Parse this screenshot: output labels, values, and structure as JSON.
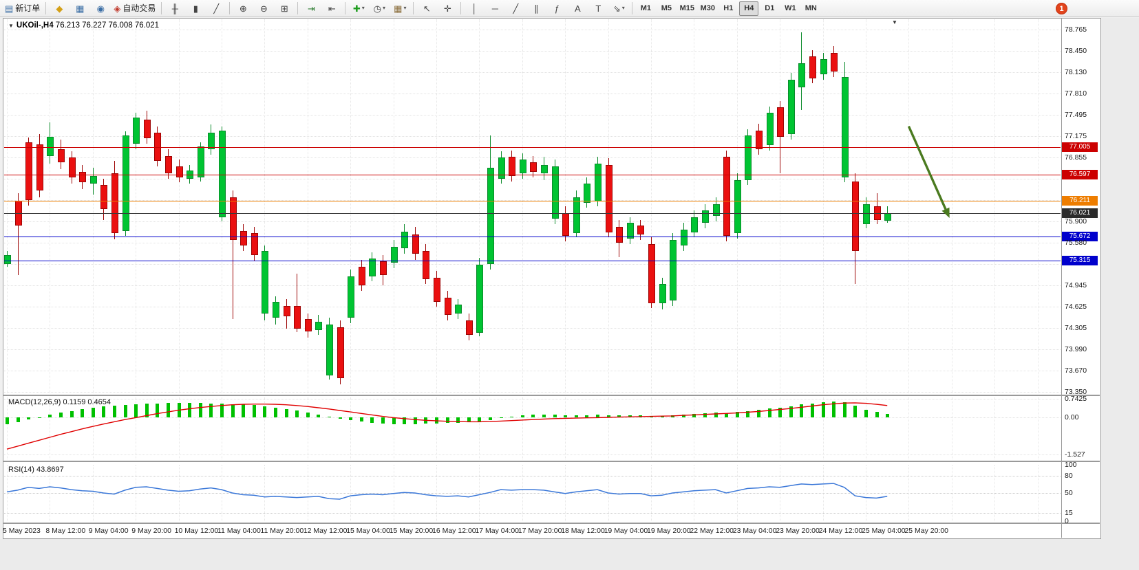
{
  "toolbar": {
    "buttons": [
      {
        "n": "new-order-button",
        "g": "▤",
        "c": "#3b6ea5",
        "label": "新订单"
      },
      {
        "sep": 1
      },
      {
        "n": "favorites-button",
        "g": "◆",
        "c": "#d4a017"
      },
      {
        "n": "market-watch-button",
        "g": "▦",
        "c": "#3b6ea5"
      },
      {
        "n": "navigator-button",
        "g": "◉",
        "c": "#3b6ea5"
      },
      {
        "n": "autotrading-button",
        "g": "◈",
        "c": "#c0392b",
        "label": "自动交易"
      },
      {
        "sep": 1
      },
      {
        "n": "bar-chart-button",
        "g": "╫",
        "c": "#444"
      },
      {
        "n": "candlestick-chart-button",
        "g": "▮",
        "c": "#444"
      },
      {
        "n": "line-chart-button",
        "g": "╱",
        "c": "#444"
      },
      {
        "sep": 1
      },
      {
        "n": "zoom-in-button",
        "g": "⊕",
        "c": "#444"
      },
      {
        "n": "zoom-out-button",
        "g": "⊖",
        "c": "#444"
      },
      {
        "n": "tile-windows-button",
        "g": "⊞",
        "c": "#444"
      },
      {
        "sep": 1
      },
      {
        "n": "auto-scroll-button",
        "g": "⇥",
        "c": "#2e7d32"
      },
      {
        "n": "chart-shift-button",
        "g": "⇤",
        "c": "#444"
      },
      {
        "sep": 1
      },
      {
        "n": "indicators-button",
        "g": "✚",
        "c": "#1f9d1f",
        "caret": 1
      },
      {
        "n": "periods-button",
        "g": "◷",
        "c": "#444",
        "caret": 1
      },
      {
        "n": "templates-button",
        "g": "▦",
        "c": "#8a6d3b",
        "caret": 1
      },
      {
        "sep": 1
      },
      {
        "n": "cursor-button",
        "g": "↖",
        "c": "#444"
      },
      {
        "n": "crosshair-button",
        "g": "✛",
        "c": "#444"
      },
      {
        "sep": 1
      },
      {
        "n": "vertical-line-button",
        "g": "│",
        "c": "#444"
      },
      {
        "n": "horizontal-line-button",
        "g": "─",
        "c": "#444"
      },
      {
        "n": "trendline-button",
        "g": "╱",
        "c": "#444"
      },
      {
        "n": "channel-button",
        "g": "∥",
        "c": "#444"
      },
      {
        "n": "fibonacci-button",
        "g": "ƒ",
        "c": "#444"
      },
      {
        "n": "text-button",
        "g": "A",
        "c": "#444"
      },
      {
        "n": "text-label-button",
        "g": "T",
        "c": "#444"
      },
      {
        "n": "arrows-tool-button",
        "g": "⇘",
        "c": "#444",
        "caret": 1
      },
      {
        "sep": 1
      }
    ],
    "timeframes": [
      "M1",
      "M5",
      "M15",
      "M30",
      "H1",
      "H4",
      "D1",
      "W1",
      "MN"
    ],
    "active_timeframe": "H4",
    "notification_count": "1"
  },
  "chart": {
    "symbol_period": "UKOil-,H4",
    "ohlc": "76.213 76.227 76.008 76.021"
  },
  "chart_data": {
    "type": "candlestick",
    "symbol": "UKOil",
    "timeframe": "H4",
    "current_ohlc": {
      "open": "76.213",
      "high": "76.227",
      "low": "76.008",
      "close": "76.021"
    },
    "price_axis_labels": [
      "78.765",
      "78.450",
      "78.130",
      "77.810",
      "77.495",
      "77.175",
      "76.855",
      "75.900",
      "75.580",
      "74.945",
      "74.625",
      "74.305",
      "73.990",
      "73.670",
      "73.350"
    ],
    "grid_prices": [
      78.765,
      78.45,
      78.13,
      77.81,
      77.495,
      77.175,
      76.855,
      76.535,
      76.215,
      75.9,
      75.58,
      75.26,
      74.945,
      74.625,
      74.305,
      73.99,
      73.67,
      73.35
    ],
    "levels": [
      {
        "price": 77.005,
        "label": "77.005",
        "color": "#cc0000"
      },
      {
        "price": 76.597,
        "label": "76.597",
        "color": "#cc0000"
      },
      {
        "price": 76.211,
        "label": "76.211",
        "color": "#ee7d00"
      },
      {
        "price": 76.021,
        "label": "76.021",
        "color": "#3a3a3a",
        "badge": "#2b2b2b",
        "current": true
      },
      {
        "price": 75.672,
        "label": "75.672",
        "color": "#0000cc"
      },
      {
        "price": 75.315,
        "label": "75.315",
        "color": "#0000cc"
      }
    ],
    "candle_colors": {
      "up": "#00c432",
      "up_border": "#0a8a2a",
      "down": "#ea1010",
      "down_border": "#9d0404"
    },
    "candles": [
      [
        75.46,
        75.4,
        75.28,
        75.22,
        "g"
      ],
      [
        76.32,
        76.21,
        75.86,
        75.1,
        "r"
      ],
      [
        77.15,
        77.08,
        76.24,
        76.14,
        "r"
      ],
      [
        77.2,
        77.05,
        76.38,
        76.26,
        "r"
      ],
      [
        77.38,
        77.16,
        76.9,
        76.76,
        "g"
      ],
      [
        77.12,
        76.98,
        76.8,
        76.68,
        "r"
      ],
      [
        76.95,
        76.85,
        76.58,
        76.46,
        "r"
      ],
      [
        76.74,
        76.64,
        76.5,
        76.38,
        "r"
      ],
      [
        76.7,
        76.58,
        76.48,
        76.3,
        "g"
      ],
      [
        76.54,
        76.44,
        76.1,
        75.92,
        "r"
      ],
      [
        76.8,
        76.62,
        75.74,
        75.63,
        "r"
      ],
      [
        77.25,
        77.18,
        75.78,
        75.68,
        "g"
      ],
      [
        77.52,
        77.45,
        77.08,
        76.98,
        "g"
      ],
      [
        77.55,
        77.42,
        77.16,
        77.06,
        "r"
      ],
      [
        77.32,
        77.22,
        76.82,
        76.72,
        "r"
      ],
      [
        76.98,
        76.88,
        76.64,
        76.54,
        "r"
      ],
      [
        76.82,
        76.72,
        76.58,
        76.48,
        "r"
      ],
      [
        76.74,
        76.66,
        76.56,
        76.46,
        "g"
      ],
      [
        77.08,
        77.02,
        76.58,
        76.5,
        "g"
      ],
      [
        77.35,
        77.22,
        77.0,
        76.9,
        "g"
      ],
      [
        77.32,
        77.26,
        75.98,
        75.9,
        "g"
      ],
      [
        76.36,
        76.26,
        75.64,
        74.44,
        "r"
      ],
      [
        75.86,
        75.76,
        75.56,
        75.46,
        "r"
      ],
      [
        75.82,
        75.72,
        75.42,
        75.3,
        "r"
      ],
      [
        75.54,
        75.46,
        74.54,
        74.42,
        "g"
      ],
      [
        74.78,
        74.7,
        74.48,
        74.36,
        "g"
      ],
      [
        74.74,
        74.64,
        74.5,
        74.3,
        "r"
      ],
      [
        75.12,
        74.64,
        74.32,
        74.24,
        "r"
      ],
      [
        74.52,
        74.44,
        74.28,
        74.16,
        "r"
      ],
      [
        74.5,
        74.4,
        74.3,
        74.2,
        "g"
      ],
      [
        74.46,
        74.36,
        73.62,
        73.54,
        "g"
      ],
      [
        74.42,
        74.32,
        73.58,
        73.46,
        "r"
      ],
      [
        75.18,
        75.08,
        74.48,
        74.38,
        "g"
      ],
      [
        75.32,
        75.22,
        74.96,
        74.86,
        "r"
      ],
      [
        75.44,
        75.34,
        75.1,
        75.0,
        "g"
      ],
      [
        75.4,
        75.3,
        75.12,
        74.94,
        "r"
      ],
      [
        75.62,
        75.52,
        75.3,
        75.2,
        "g"
      ],
      [
        75.86,
        75.74,
        75.52,
        75.42,
        "g"
      ],
      [
        75.82,
        75.7,
        75.44,
        75.32,
        "r"
      ],
      [
        75.56,
        75.46,
        75.06,
        74.96,
        "r"
      ],
      [
        75.16,
        75.06,
        74.72,
        74.62,
        "r"
      ],
      [
        74.86,
        74.76,
        74.52,
        74.42,
        "r"
      ],
      [
        74.74,
        74.66,
        74.54,
        74.44,
        "g"
      ],
      [
        74.52,
        74.42,
        74.22,
        74.12,
        "r"
      ],
      [
        75.35,
        75.25,
        74.26,
        74.18,
        "g"
      ],
      [
        77.18,
        76.7,
        75.28,
        75.18,
        "g"
      ],
      [
        76.95,
        76.85,
        76.56,
        76.46,
        "g"
      ],
      [
        76.96,
        76.86,
        76.6,
        76.5,
        "r"
      ],
      [
        76.92,
        76.82,
        76.64,
        76.54,
        "g"
      ],
      [
        76.88,
        76.78,
        76.66,
        76.56,
        "r"
      ],
      [
        76.86,
        76.74,
        76.64,
        76.52,
        "g"
      ],
      [
        76.82,
        76.72,
        75.96,
        75.86,
        "g"
      ],
      [
        76.12,
        76.02,
        75.7,
        75.6,
        "r"
      ],
      [
        76.36,
        76.26,
        75.74,
        75.66,
        "g"
      ],
      [
        76.56,
        76.46,
        76.2,
        76.1,
        "g"
      ],
      [
        76.86,
        76.76,
        76.22,
        76.12,
        "g"
      ],
      [
        76.84,
        76.74,
        75.76,
        75.66,
        "r"
      ],
      [
        75.92,
        75.82,
        75.6,
        75.36,
        "r"
      ],
      [
        75.96,
        75.88,
        75.66,
        75.56,
        "g"
      ],
      [
        75.92,
        75.84,
        75.72,
        75.62,
        "r"
      ],
      [
        75.66,
        75.56,
        74.7,
        74.6,
        "r"
      ],
      [
        75.06,
        74.96,
        74.7,
        74.58,
        "g"
      ],
      [
        75.72,
        75.62,
        74.74,
        74.64,
        "g"
      ],
      [
        75.88,
        75.78,
        75.56,
        75.46,
        "g"
      ],
      [
        76.06,
        75.96,
        75.76,
        75.66,
        "g"
      ],
      [
        76.16,
        76.06,
        75.9,
        75.8,
        "g"
      ],
      [
        76.26,
        76.16,
        76.0,
        75.9,
        "g"
      ],
      [
        76.96,
        76.86,
        75.7,
        75.6,
        "r"
      ],
      [
        76.62,
        76.52,
        75.74,
        75.64,
        "g"
      ],
      [
        77.28,
        77.18,
        76.54,
        76.44,
        "g"
      ],
      [
        77.36,
        77.26,
        77.0,
        76.9,
        "r"
      ],
      [
        77.62,
        77.52,
        77.06,
        76.96,
        "g"
      ],
      [
        77.7,
        77.6,
        77.18,
        76.62,
        "r"
      ],
      [
        78.12,
        78.02,
        77.22,
        77.12,
        "g"
      ],
      [
        78.72,
        78.26,
        77.92,
        77.56,
        "g"
      ],
      [
        78.46,
        78.36,
        78.06,
        77.96,
        "r"
      ],
      [
        78.42,
        78.32,
        78.12,
        78.02,
        "g"
      ],
      [
        78.52,
        78.42,
        78.16,
        78.06,
        "r"
      ],
      [
        78.28,
        78.06,
        76.58,
        76.48,
        "g"
      ],
      [
        76.62,
        76.5,
        75.48,
        74.96,
        "r"
      ],
      [
        76.26,
        76.16,
        75.88,
        75.8,
        "g"
      ],
      [
        76.32,
        76.12,
        75.94,
        75.86,
        "r"
      ],
      [
        76.12,
        76.02,
        75.93,
        75.88,
        "g"
      ]
    ],
    "time_labels": [
      "5 May 2023",
      "8 May 12:00",
      "9 May 04:00",
      "9 May 20:00",
      "10 May 12:00",
      "11 May 04:00",
      "11 May 20:00",
      "12 May 12:00",
      "15 May 04:00",
      "15 May 20:00",
      "16 May 12:00",
      "17 May 04:00",
      "17 May 20:00",
      "18 May 12:00",
      "19 May 04:00",
      "19 May 20:00",
      "22 May 12:00",
      "23 May 04:00",
      "23 May 20:00",
      "24 May 12:00",
      "25 May 04:00",
      "25 May 20:00"
    ],
    "candles_per_label": 4,
    "macd": {
      "label": "MACD(12,26,9)",
      "current": "0.1159 0.4654",
      "axis_labels": [
        "0.7425",
        "0.00",
        "-1.527"
      ],
      "axis_values": [
        0.7425,
        0,
        -1.527
      ],
      "hist_color": "#00c000",
      "signal_color": "#e00000",
      "hist": [
        -0.3,
        -0.2,
        -0.1,
        0.0,
        0.1,
        0.18,
        0.25,
        0.32,
        0.38,
        0.43,
        0.47,
        0.5,
        0.53,
        0.55,
        0.56,
        0.57,
        0.58,
        0.58,
        0.57,
        0.56,
        0.55,
        0.53,
        0.51,
        0.48,
        0.44,
        0.39,
        0.33,
        0.26,
        0.18,
        0.1,
        0.02,
        -0.06,
        -0.13,
        -0.19,
        -0.24,
        -0.27,
        -0.29,
        -0.29,
        -0.28,
        -0.26,
        -0.25,
        -0.24,
        -0.23,
        -0.21,
        -0.17,
        -0.11,
        -0.04,
        0.02,
        0.06,
        0.09,
        0.1,
        0.09,
        0.07,
        0.06,
        0.07,
        0.09,
        0.08,
        0.06,
        0.06,
        0.07,
        0.05,
        0.05,
        0.07,
        0.1,
        0.13,
        0.16,
        0.19,
        0.17,
        0.2,
        0.25,
        0.3,
        0.35,
        0.39,
        0.45,
        0.51,
        0.56,
        0.61,
        0.64,
        0.61,
        0.46,
        0.31,
        0.21,
        0.12
      ],
      "signal": [
        -1.3,
        -1.18,
        -1.06,
        -0.94,
        -0.82,
        -0.7,
        -0.59,
        -0.48,
        -0.38,
        -0.28,
        -0.19,
        -0.1,
        -0.02,
        0.06,
        0.14,
        0.21,
        0.28,
        0.34,
        0.39,
        0.43,
        0.47,
        0.5,
        0.52,
        0.53,
        0.53,
        0.52,
        0.5,
        0.47,
        0.43,
        0.38,
        0.33,
        0.27,
        0.21,
        0.15,
        0.09,
        0.03,
        -0.02,
        -0.06,
        -0.1,
        -0.13,
        -0.15,
        -0.17,
        -0.18,
        -0.19,
        -0.19,
        -0.18,
        -0.16,
        -0.14,
        -0.12,
        -0.1,
        -0.08,
        -0.06,
        -0.05,
        -0.04,
        -0.03,
        -0.02,
        -0.01,
        0.0,
        0.01,
        0.02,
        0.03,
        0.04,
        0.05,
        0.07,
        0.09,
        0.11,
        0.13,
        0.15,
        0.17,
        0.2,
        0.23,
        0.27,
        0.31,
        0.35,
        0.4,
        0.45,
        0.5,
        0.54,
        0.57,
        0.58,
        0.56,
        0.52,
        0.47
      ]
    },
    "rsi": {
      "label": "RSI(14)",
      "current": "43.8697",
      "axis_labels": [
        "100",
        "80",
        "50",
        "15",
        "0"
      ],
      "axis_values": [
        100,
        80,
        50,
        15,
        0
      ],
      "level_lines": [
        80,
        50,
        15
      ],
      "line_color": "#3a77d8",
      "values": [
        52,
        55,
        60,
        58,
        61,
        59,
        56,
        54,
        53,
        50,
        48,
        55,
        60,
        61,
        58,
        55,
        53,
        54,
        57,
        59,
        56,
        50,
        47,
        46,
        43,
        44,
        43,
        42,
        43,
        44,
        40,
        39,
        45,
        47,
        48,
        47,
        49,
        51,
        50,
        47,
        45,
        44,
        45,
        43,
        47,
        51,
        56,
        55,
        56,
        56,
        55,
        52,
        49,
        52,
        54,
        56,
        50,
        48,
        49,
        49,
        45,
        46,
        50,
        52,
        54,
        55,
        56,
        50,
        54,
        58,
        59,
        61,
        60,
        63,
        66,
        65,
        66,
        67,
        60,
        45,
        42,
        41,
        44
      ]
    },
    "annotation_arrow": {
      "i1": 84,
      "p1": 77.32,
      "i2": 87.8,
      "p2": 75.95,
      "color": "#4a7a1f"
    }
  }
}
